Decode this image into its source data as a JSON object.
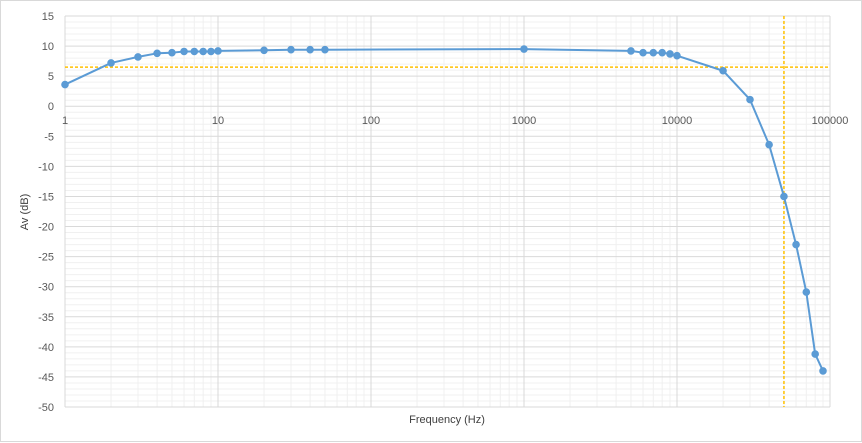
{
  "chart_data": {
    "type": "scatter",
    "xlabel": "Frequency (Hz)",
    "ylabel": "Av (dB)",
    "x_scale": "log",
    "xlim": [
      1,
      100000
    ],
    "ylim": [
      -50,
      15
    ],
    "x_ticks": [
      1,
      10,
      100,
      1000,
      10000,
      100000
    ],
    "x_tick_labels": [
      "1",
      "10",
      "100",
      "1000",
      "10000",
      "100000"
    ],
    "y_ticks": [
      -50,
      -45,
      -40,
      -35,
      -30,
      -25,
      -20,
      -15,
      -10,
      -5,
      0,
      5,
      10,
      15
    ],
    "y_tick_labels": [
      "-50",
      "-45",
      "-40",
      "-35",
      "-30",
      "-25",
      "-20",
      "-15",
      "-10",
      "-5",
      "0",
      "5",
      "10",
      "15"
    ],
    "grid": true,
    "series": [
      {
        "color": "#5b9bd5",
        "x": [
          1,
          2,
          3,
          4,
          5,
          6,
          7,
          8,
          9,
          10,
          20,
          30,
          40,
          50,
          1000,
          5000,
          6000,
          7000,
          8000,
          9000,
          10000,
          20000,
          30000,
          40000,
          50000,
          60000,
          70000,
          80000,
          90000
        ],
        "y": [
          3.6,
          7.2,
          8.2,
          8.8,
          8.9,
          9.1,
          9.1,
          9.1,
          9.1,
          9.2,
          9.3,
          9.4,
          9.4,
          9.4,
          9.5,
          9.2,
          8.9,
          8.9,
          8.9,
          8.7,
          8.4,
          5.9,
          1.1,
          -6.4,
          -15.0,
          -23.0,
          -30.9,
          -41.2,
          -44.0
        ]
      }
    ],
    "reference_lines": {
      "color": "#ffc000",
      "horizontal_y": 6.5,
      "vertical_x": 50000
    }
  }
}
